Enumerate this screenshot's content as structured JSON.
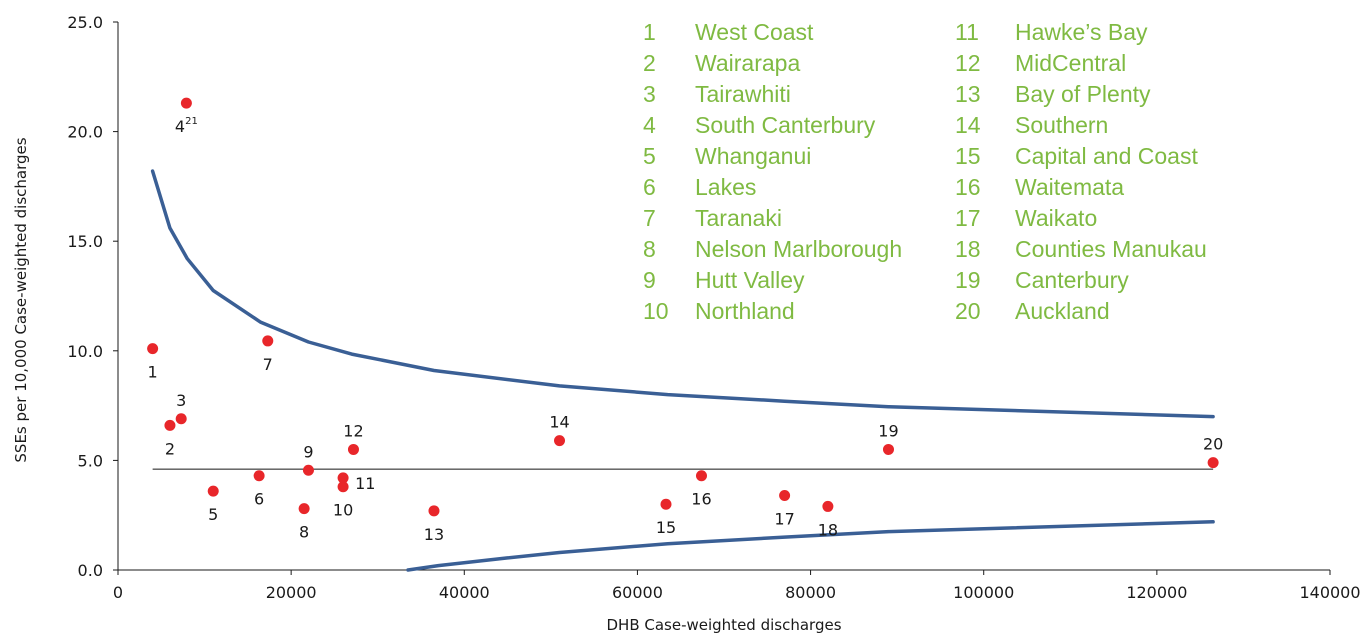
{
  "chart_data": {
    "type": "scatter",
    "title": "",
    "xlabel": "DHB Case-weighted discharges",
    "ylabel": "SSEs per 10,000 Case-weighted discharges",
    "xlim": [
      0,
      140000
    ],
    "ylim": [
      0,
      25
    ],
    "x_ticks": [
      "0",
      "20000",
      "40000",
      "60000",
      "80000",
      "100000",
      "120000",
      "140000"
    ],
    "y_ticks": [
      "0.0",
      "5.0",
      "10.0",
      "15.0",
      "20.0",
      "25.0"
    ],
    "grid": false,
    "colors": {
      "point": "#e8262a",
      "funnel": "#3a5f95",
      "mean": "#555555",
      "legend": "#7fba42"
    },
    "mean_line": {
      "y": 4.6,
      "x_start": 4000,
      "x_end": 126500
    },
    "upper_limit": [
      {
        "x": 4000,
        "y": 18.2
      },
      {
        "x": 6000,
        "y": 15.6
      },
      {
        "x": 8000,
        "y": 14.2
      },
      {
        "x": 11000,
        "y": 12.75
      },
      {
        "x": 16500,
        "y": 11.3
      },
      {
        "x": 22000,
        "y": 10.4
      },
      {
        "x": 27000,
        "y": 9.85
      },
      {
        "x": 36500,
        "y": 9.1
      },
      {
        "x": 51000,
        "y": 8.4
      },
      {
        "x": 63500,
        "y": 8.0
      },
      {
        "x": 77000,
        "y": 7.7
      },
      {
        "x": 89000,
        "y": 7.45
      },
      {
        "x": 126500,
        "y": 7.0
      }
    ],
    "lower_limit": [
      {
        "x": 33500,
        "y": 0.0
      },
      {
        "x": 37000,
        "y": 0.2
      },
      {
        "x": 45000,
        "y": 0.55
      },
      {
        "x": 51000,
        "y": 0.8
      },
      {
        "x": 63500,
        "y": 1.2
      },
      {
        "x": 77000,
        "y": 1.5
      },
      {
        "x": 89000,
        "y": 1.75
      },
      {
        "x": 126500,
        "y": 2.2
      }
    ],
    "points": [
      {
        "label": "1",
        "x": 4000,
        "y": 10.1,
        "lpos": "below"
      },
      {
        "label": "2",
        "x": 6000,
        "y": 6.6,
        "lpos": "below"
      },
      {
        "label": "3",
        "x": 7300,
        "y": 6.9,
        "lpos": "above"
      },
      {
        "label": "4",
        "sup": "21",
        "x": 7900,
        "y": 21.3,
        "lpos": "below"
      },
      {
        "label": "5",
        "x": 11000,
        "y": 3.6,
        "lpos": "below"
      },
      {
        "label": "6",
        "x": 16300,
        "y": 4.3,
        "lpos": "below"
      },
      {
        "label": "7",
        "x": 17300,
        "y": 10.45,
        "lpos": "below"
      },
      {
        "label": "8",
        "x": 21500,
        "y": 2.8,
        "lpos": "below"
      },
      {
        "label": "9",
        "x": 22000,
        "y": 4.55,
        "lpos": "above"
      },
      {
        "label": "10",
        "x": 26000,
        "y": 3.8,
        "lpos": "below"
      },
      {
        "label": "11",
        "x": 26000,
        "y": 4.2,
        "lpos": "right"
      },
      {
        "label": "12",
        "x": 27200,
        "y": 5.5,
        "lpos": "above"
      },
      {
        "label": "13",
        "x": 36500,
        "y": 2.7,
        "lpos": "below"
      },
      {
        "label": "14",
        "x": 51000,
        "y": 5.9,
        "lpos": "above"
      },
      {
        "label": "15",
        "x": 63300,
        "y": 3.0,
        "lpos": "below"
      },
      {
        "label": "16",
        "x": 67400,
        "y": 4.3,
        "lpos": "below"
      },
      {
        "label": "17",
        "x": 77000,
        "y": 3.4,
        "lpos": "below"
      },
      {
        "label": "18",
        "x": 82000,
        "y": 2.9,
        "lpos": "below"
      },
      {
        "label": "19",
        "x": 89000,
        "y": 5.5,
        "lpos": "above"
      },
      {
        "label": "20",
        "x": 126500,
        "y": 4.9,
        "lpos": "above"
      }
    ],
    "legend": [
      {
        "num": "1",
        "name": "West Coast"
      },
      {
        "num": "2",
        "name": "Wairarapa"
      },
      {
        "num": "3",
        "name": "Tairawhiti"
      },
      {
        "num": "4",
        "name": "South Canterbury"
      },
      {
        "num": "5",
        "name": "Whanganui"
      },
      {
        "num": "6",
        "name": "Lakes"
      },
      {
        "num": "7",
        "name": "Taranaki"
      },
      {
        "num": "8",
        "name": "Nelson Marlborough"
      },
      {
        "num": "9",
        "name": "Hutt Valley"
      },
      {
        "num": "10",
        "name": "Northland"
      },
      {
        "num": "11",
        "name": "Hawke’s Bay"
      },
      {
        "num": "12",
        "name": "MidCentral"
      },
      {
        "num": "13",
        "name": "Bay of Plenty"
      },
      {
        "num": "14",
        "name": "Southern"
      },
      {
        "num": "15",
        "name": "Capital and Coast"
      },
      {
        "num": "16",
        "name": "Waitemata"
      },
      {
        "num": "17",
        "name": "Waikato"
      },
      {
        "num": "18",
        "name": "Counties Manukau"
      },
      {
        "num": "19",
        "name": "Canterbury"
      },
      {
        "num": "20",
        "name": "Auckland"
      }
    ]
  }
}
